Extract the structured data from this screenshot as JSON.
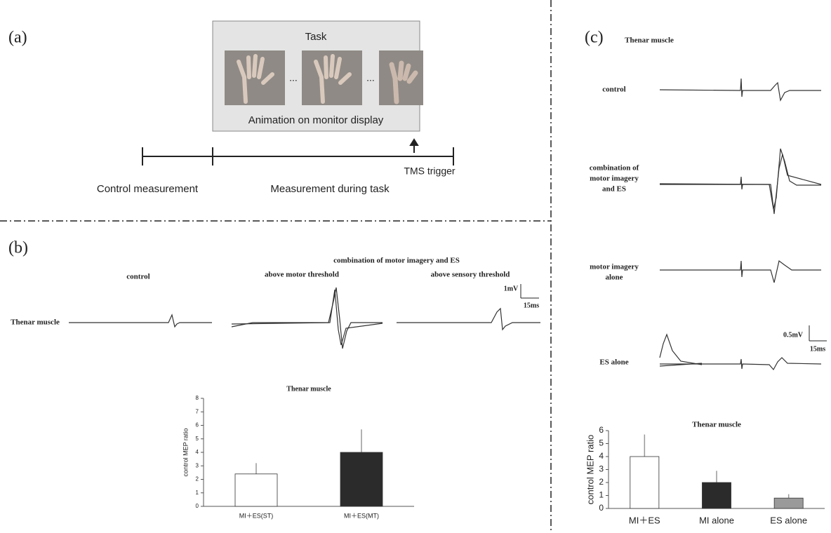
{
  "panel_a": {
    "label": "(a)",
    "task_title": "Task",
    "ellipsis": [
      "...",
      "..."
    ],
    "caption": "Animation on monitor display",
    "trigger": "TMS trigger",
    "phases": [
      "Control measurement",
      "Measurement during task"
    ]
  },
  "panel_b": {
    "label": "(b)",
    "group_title": "combination of motor imagery and ES",
    "conditions": [
      "control",
      "above motor threshold",
      "above sensory threshold"
    ],
    "row_label": "Thenar muscle",
    "scale": [
      "1mV",
      "15ms"
    ]
  },
  "panel_c": {
    "label": "(c)",
    "title": "Thenar muscle",
    "rows": [
      [
        "control"
      ],
      [
        "combination of",
        "motor imagery",
        "and ES"
      ],
      [
        "motor imagery",
        "alone"
      ],
      [
        "ES alone"
      ]
    ],
    "scale": [
      "0.5mV",
      "15ms"
    ]
  },
  "chart_data": [
    {
      "type": "bar",
      "title": "Thenar muscle",
      "y_label": "control MEP ratio",
      "categories": [
        "MI＋ES(ST)",
        "MI＋ES(MT)"
      ],
      "values": [
        2.4,
        4.0
      ],
      "errors": [
        0.8,
        1.7
      ],
      "colors": [
        "#ffffff",
        "#2b2b2b"
      ],
      "ylim": [
        0,
        8
      ],
      "yticks": [
        0,
        1,
        2,
        3,
        4,
        5,
        6,
        7,
        8
      ]
    },
    {
      "type": "bar",
      "title": "Thenar muscle",
      "y_label": "control MEP ratio",
      "categories": [
        "MI＋ES",
        "MI alone",
        "ES alone"
      ],
      "values": [
        4.0,
        2.0,
        0.8
      ],
      "errors": [
        1.7,
        0.9,
        0.3
      ],
      "colors": [
        "#ffffff",
        "#2b2b2b",
        "#9a9a9a"
      ],
      "ylim": [
        0,
        6
      ],
      "yticks": [
        0,
        1,
        2,
        3,
        4,
        5,
        6
      ]
    }
  ]
}
